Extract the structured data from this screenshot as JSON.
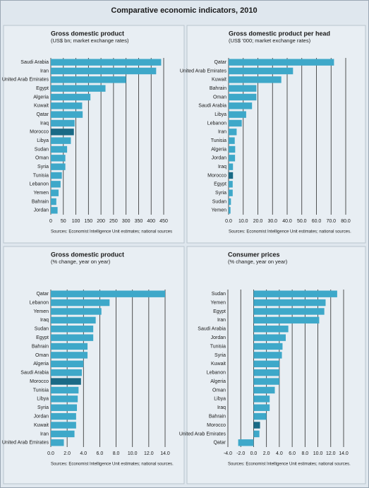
{
  "title": "Comparative economic indicators, 2010",
  "chart_data": [
    {
      "type": "bar",
      "orientation": "horizontal",
      "title": "Gross domestic product",
      "subtitle": "(US$ bn; market exchange rates)",
      "categories": [
        "Saudi Arabia",
        "Iran",
        "United Arab Emirates",
        "Egypt",
        "Algeria",
        "Kuwait",
        "Qatar",
        "Iraq",
        "Morocco",
        "Libya",
        "Sudan",
        "Oman",
        "Syria",
        "Tunisia",
        "Lebanon",
        "Yemen",
        "Bahrain",
        "Jordan"
      ],
      "values": [
        440,
        420,
        300,
        218,
        158,
        125,
        127,
        95,
        92,
        80,
        65,
        58,
        58,
        44,
        39,
        31,
        22,
        27
      ],
      "colors": [
        "#3ea8c9",
        "#3ea8c9",
        "#3ea8c9",
        "#3ea8c9",
        "#3ea8c9",
        "#3ea8c9",
        "#3ea8c9",
        "#3ea8c9",
        "#1a6a86",
        "#3ea8c9",
        "#3ea8c9",
        "#3ea8c9",
        "#3ea8c9",
        "#3ea8c9",
        "#3ea8c9",
        "#3ea8c9",
        "#3ea8c9",
        "#3ea8c9"
      ],
      "xlim": [
        0,
        450
      ],
      "xticks": [
        0,
        50,
        100,
        150,
        200,
        250,
        300,
        350,
        400,
        450
      ],
      "grid": true,
      "source": "Sources: Economist Intelligence Unit estimates; national sources"
    },
    {
      "type": "bar",
      "orientation": "horizontal",
      "title": "Gross domestic product per head",
      "subtitle": "(US$ '000; market exchange rates)",
      "categories": [
        "Qatar",
        "United Arab Emirates",
        "Kuwait",
        "Bahrain",
        "Oman",
        "Saudi Arabia",
        "Libya",
        "Lebanon",
        "Iran",
        "Tunisia",
        "Algeria",
        "Jordan",
        "Iraq",
        "Morocco",
        "Egypt",
        "Syria",
        "Sudan",
        "Yemen"
      ],
      "values": [
        72,
        44,
        36,
        19,
        19,
        16,
        12,
        9,
        5.5,
        4.2,
        4.5,
        4.4,
        3,
        3,
        2.8,
        2.8,
        1.6,
        1.3
      ],
      "colors": [
        "#3ea8c9",
        "#3ea8c9",
        "#3ea8c9",
        "#3ea8c9",
        "#3ea8c9",
        "#3ea8c9",
        "#3ea8c9",
        "#3ea8c9",
        "#3ea8c9",
        "#3ea8c9",
        "#3ea8c9",
        "#3ea8c9",
        "#3ea8c9",
        "#1a6a86",
        "#3ea8c9",
        "#3ea8c9",
        "#3ea8c9",
        "#3ea8c9"
      ],
      "xlim": [
        0,
        80
      ],
      "xticks": [
        {
          "value": 0,
          "label": "0.0"
        },
        {
          "value": 10,
          "label": "10.0"
        },
        {
          "value": 20,
          "label": "20.0"
        },
        {
          "value": 30,
          "label": "30.0"
        },
        {
          "value": 40,
          "label": "40.0"
        },
        {
          "value": 50,
          "label": "50.0"
        },
        {
          "value": 60,
          "label": "60.0"
        },
        {
          "value": 70,
          "label": "70.0"
        },
        {
          "value": 80,
          "label": "80.0"
        }
      ],
      "grid": true,
      "source": "Sources: Economist Intelligence Unit estimates; national sources."
    },
    {
      "type": "bar",
      "orientation": "horizontal",
      "title": "Gross domestic product",
      "subtitle": "(% change, year on year)",
      "categories": [
        "Qatar",
        "Lebanon",
        "Yemen",
        "Iraq",
        "Sudan",
        "Egypt",
        "Bahrain",
        "Oman",
        "Algeria",
        "Saudi Arabia",
        "Morocco",
        "Tunisia",
        "Libya",
        "Syria",
        "Jordan",
        "Kuwait",
        "Iran",
        "United Arab Emirates"
      ],
      "values": [
        14.0,
        7.2,
        6.2,
        5.5,
        5.2,
        5.2,
        4.5,
        4.5,
        4.0,
        3.8,
        3.7,
        3.4,
        3.3,
        3.2,
        3.1,
        3.1,
        2.9,
        1.6
      ],
      "colors": [
        "#3ea8c9",
        "#3ea8c9",
        "#3ea8c9",
        "#3ea8c9",
        "#3ea8c9",
        "#3ea8c9",
        "#3ea8c9",
        "#3ea8c9",
        "#3ea8c9",
        "#3ea8c9",
        "#1a6a86",
        "#3ea8c9",
        "#3ea8c9",
        "#3ea8c9",
        "#3ea8c9",
        "#3ea8c9",
        "#3ea8c9",
        "#3ea8c9"
      ],
      "xlim": [
        0,
        14
      ],
      "xticks": [
        {
          "value": 0,
          "label": "0.0"
        },
        {
          "value": 2,
          "label": "2.0"
        },
        {
          "value": 4,
          "label": "4.0"
        },
        {
          "value": 6,
          "label": "6.0"
        },
        {
          "value": 8,
          "label": "8.0"
        },
        {
          "value": 10,
          "label": "10.0"
        },
        {
          "value": 12,
          "label": "12.0"
        },
        {
          "value": 14,
          "label": "14.0"
        }
      ],
      "grid": true,
      "source": "Sources: Economist Intelligence Unit estimates; national sources."
    },
    {
      "type": "bar",
      "orientation": "horizontal",
      "title": "Consumer prices",
      "subtitle": "(% change, year on year)",
      "categories": [
        "Sudan",
        "Yemen",
        "Egypt",
        "Iran",
        "Saudi Arabia",
        "Jordan",
        "Tunisia",
        "Syria",
        "Kuwait",
        "Lebanon",
        "Algeria",
        "Oman",
        "Libya",
        "Iraq",
        "Bahrain",
        "Morocco",
        "United Arab Emirates",
        "Qatar"
      ],
      "values": [
        13,
        11.2,
        11.0,
        10.2,
        5.4,
        5.0,
        4.5,
        4.4,
        4.0,
        4.0,
        4.0,
        3.3,
        2.5,
        2.5,
        2.0,
        1.0,
        0.9,
        -2.4
      ],
      "colors": [
        "#3ea8c9",
        "#3ea8c9",
        "#3ea8c9",
        "#3ea8c9",
        "#3ea8c9",
        "#3ea8c9",
        "#3ea8c9",
        "#3ea8c9",
        "#3ea8c9",
        "#3ea8c9",
        "#3ea8c9",
        "#3ea8c9",
        "#3ea8c9",
        "#3ea8c9",
        "#3ea8c9",
        "#1a6a86",
        "#3ea8c9",
        "#3ea8c9"
      ],
      "xlim": [
        -4,
        14
      ],
      "xticks": [
        {
          "value": -4,
          "label": "-4.0"
        },
        {
          "value": -2,
          "label": "-2.0"
        },
        {
          "value": 0,
          "label": "0.0"
        },
        {
          "value": 2,
          "label": "2.0"
        },
        {
          "value": 4,
          "label": "4.0"
        },
        {
          "value": 6,
          "label": "6.0"
        },
        {
          "value": 8,
          "label": "8.0"
        },
        {
          "value": 10,
          "label": "10.0"
        },
        {
          "value": 12,
          "label": "12.0"
        },
        {
          "value": 14,
          "label": "14.0"
        }
      ],
      "grid": true,
      "source": "Sources: Economist Intelligence Unit estimates; national sources."
    }
  ]
}
